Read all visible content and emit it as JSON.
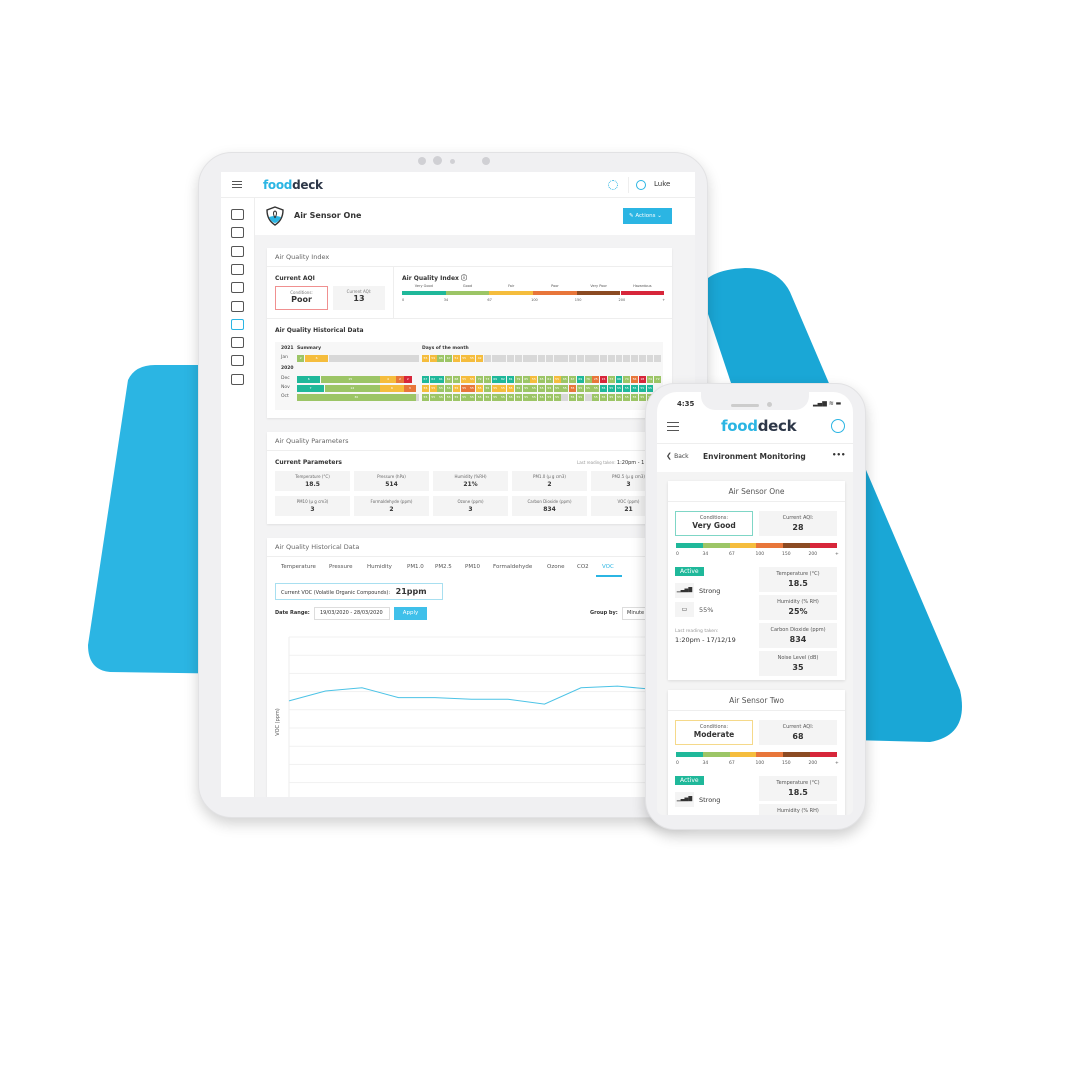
{
  "colors": {
    "brand_blue": "#2bb5e3",
    "very_good": "#1fb89a",
    "good": "#9cc566",
    "fair": "#f5bd3d",
    "poor": "#e8763a",
    "very_poor": "#8b4a22",
    "hazardous": "#d7263a",
    "grey": "#d8d8d8"
  },
  "tablet": {
    "header": {
      "logo_a": "food",
      "logo_b": "deck",
      "user": "Luke",
      "icons": [
        "menu-icon",
        "gear-icon",
        "user-icon"
      ]
    },
    "sidebar": {
      "icons": [
        "dashboard-icon",
        "reports-icon",
        "waste-icon",
        "checklist-icon",
        "inventory-icon",
        "equipment-icon",
        "sensor-icon",
        "documents-icon",
        "users-icon",
        "training-icon"
      ],
      "active_index": 6
    },
    "page_title": "Air Sensor One",
    "actions_label": "Actions",
    "aqi_card": {
      "title": "Air Quality Index",
      "current_aqi_heading": "Current AQI",
      "conditions_label": "Conditions:",
      "conditions_value": "Poor",
      "current_aqi_label": "Current AQI:",
      "current_aqi_value": "13",
      "index_heading": "Air Quality Index",
      "scale_labels": [
        "Very Good",
        "Good",
        "Fair",
        "Poor",
        "Very Poor",
        "Hazardous"
      ],
      "scale_ticks": [
        "0",
        "34",
        "67",
        "100",
        "150",
        "200",
        "+"
      ],
      "historical_heading": "Air Quality Historical Data",
      "summary_label": "Summary",
      "days_label": "Days of the month",
      "rows": [
        {
          "year": "2021",
          "month": "Jan",
          "summary": [
            {
              "v": "2",
              "c": "good"
            },
            {
              "v": "6",
              "c": "fair"
            },
            {
              "v": "",
              "c": "grey",
              "n": 23
            }
          ],
          "days": [
            "55:f",
            "59:f",
            "65:g",
            "67:g",
            "51:f",
            "55:f",
            "55:f",
            "42:f"
          ],
          "days_total": 31
        },
        {
          "year": "2020",
          "month": "Dec",
          "summary": [
            {
              "v": "6",
              "c": "very_good"
            },
            {
              "v": "15",
              "c": "good"
            },
            {
              "v": "4",
              "c": "fair"
            },
            {
              "v": "2",
              "c": "poor"
            },
            {
              "v": "2",
              "c": "hazardous"
            }
          ],
          "days": [
            "67:t",
            "62:t",
            "61:t",
            "62:g",
            "68:g",
            "55:f",
            "55:f",
            "72:g",
            "73:g",
            "69:t",
            "82:t",
            "81:t",
            "79:g",
            "65:g",
            "55:f",
            "65:g",
            "61:g",
            "55:f",
            "65:g",
            "67:g",
            "69:t",
            "76:g",
            "25:o",
            "15:r",
            "73:g",
            "66:t",
            "74:g",
            "56:o",
            "18:r",
            "74:g",
            "72:g"
          ],
          "days_total": 31
        },
        {
          "year": "",
          "month": "Nov",
          "summary": [
            {
              "v": "7",
              "c": "very_good"
            },
            {
              "v": "14",
              "c": "good"
            },
            {
              "v": "6",
              "c": "fair"
            },
            {
              "v": "3",
              "c": "poor"
            }
          ],
          "days": [
            "55:f",
            "55:f",
            "55:g",
            "55:g",
            "55:f",
            "55:o",
            "55:o",
            "55:f",
            "55:g",
            "55:f",
            "55:f",
            "55:f",
            "55:g",
            "55:g",
            "55:g",
            "55:g",
            "55:g",
            "55:g",
            "55:g",
            "55:o",
            "55:g",
            "55:g",
            "55:g",
            "55:t",
            "55:t",
            "55:t",
            "55:t",
            "55:t",
            "55:t",
            "55:t"
          ],
          "days_total": 30
        },
        {
          "year": "",
          "month": "Oct",
          "summary": [
            {
              "v": "30",
              "c": "good"
            },
            {
              "v": "",
              "c": "grey",
              "n": 1
            }
          ],
          "days": [
            "55:g",
            "55:g",
            "55:g",
            "55:g",
            "55:g",
            "55:g",
            "55:g",
            "55:g",
            "55:g",
            "55:g",
            "55:g",
            "55:g",
            "55:g",
            "55:g",
            "55:g",
            "55:g",
            "55:g",
            "55:g",
            ":x",
            "55:g",
            "55:g",
            ":x",
            "55:g",
            "55:g",
            "55:g",
            "55:g",
            "55:g",
            "55:g",
            "55:g",
            "55:g",
            "55:g"
          ],
          "days_total": 31
        }
      ]
    },
    "params_card": {
      "title": "Air Quality Parameters",
      "heading": "Current Parameters",
      "last_reading_label": "Last reading taken:",
      "last_reading_value": "1:20pm - 1",
      "items": [
        {
          "label": "Temperature (°C)",
          "value": "18.5"
        },
        {
          "label": "Pressure (hPa)",
          "value": "514"
        },
        {
          "label": "Humidity (%RH)",
          "value": "21%"
        },
        {
          "label": "PM1.0 (μ g cm3)",
          "value": "2"
        },
        {
          "label": "PM2.5 (μ g cm3)",
          "value": "3"
        },
        {
          "label": "PM10 (μ g cm3)",
          "value": "3"
        },
        {
          "label": "Formaldehyde (ppm)",
          "value": "2"
        },
        {
          "label": "Ozone (ppm)",
          "value": "3"
        },
        {
          "label": "Carbon Dioxide (ppm)",
          "value": "834"
        },
        {
          "label": "VOC (ppm)",
          "value": "21"
        }
      ]
    },
    "history_card": {
      "title": "Air Quality Historical Data",
      "tabs": [
        "Temperature",
        "Pressure",
        "Humidity",
        "PM1.0",
        "PM2.5",
        "PM10",
        "Formaldehyde",
        "Ozone",
        "CO2",
        "VOC"
      ],
      "active_tab": "VOC",
      "current_label": "Current VOC (Volatile Organic Compounds):",
      "current_value": "21ppm",
      "date_range_label": "Date Range:",
      "date_range_value": "19/03/2020 - 28/03/2020",
      "apply_label": "Apply",
      "group_by_label": "Group by:",
      "group_by_value": "Minute"
    }
  },
  "chart_data": {
    "type": "line",
    "ylabel": "VOC (ppm)",
    "series": [
      {
        "values": [
          0.59,
          0.65,
          0.67,
          0.61,
          0.61,
          0.6,
          0.6,
          0.57,
          0.67,
          0.68,
          0.66
        ]
      }
    ],
    "grid": true,
    "line_color": "#4cc3e6"
  },
  "phone": {
    "time": "4:35",
    "logo_a": "food",
    "logo_b": "deck",
    "back_label": "Back",
    "title": "Environment Monitoring",
    "more_label": "•••",
    "scale_ticks": [
      "0",
      "34",
      "67",
      "100",
      "150",
      "200",
      "+"
    ],
    "sensors": [
      {
        "name": "Air Sensor One",
        "conditions_label": "Conditions:",
        "conditions_value": "Very Good",
        "border": "#7fd6c6",
        "aqi_label": "Current AQI:",
        "aqi_value": "28",
        "status": "Active",
        "signal": "Strong",
        "battery": "55%",
        "last_label": "Last reading taken:",
        "last_value": "1:20pm - 17/12/19",
        "readings": [
          {
            "label": "Temperature (°C)",
            "value": "18.5"
          },
          {
            "label": "Humidity (% RH)",
            "value": "25%"
          },
          {
            "label": "Carbon Dioxide (ppm)",
            "value": "834"
          },
          {
            "label": "Noise Level (dB)",
            "value": "35"
          }
        ]
      },
      {
        "name": "Air Sensor Two",
        "conditions_label": "Conditions:",
        "conditions_value": "Moderate",
        "border": "#f5d98a",
        "aqi_label": "Current AQI:",
        "aqi_value": "68",
        "status": "Active",
        "signal": "Strong",
        "readings": [
          {
            "label": "Temperature (°C)",
            "value": "18.5"
          },
          {
            "label": "Humidity (% RH)",
            "value": ""
          }
        ]
      }
    ]
  }
}
